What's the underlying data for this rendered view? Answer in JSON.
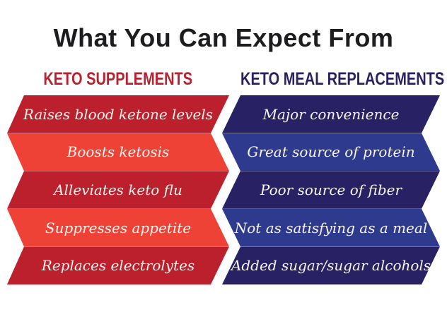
{
  "title": "What You Can Expect From",
  "columns": [
    {
      "header": "KETO SUPPLEMENTS",
      "color": "#BC202D"
    },
    {
      "header": "KETO MEAL REPLACEMENTS",
      "color": "#282264"
    }
  ],
  "rows": [
    {
      "left": "Raises blood ketone levels",
      "right": "Major convenience"
    },
    {
      "left": "Boosts ketosis",
      "right": "Great source of protein"
    },
    {
      "left": "Alleviates keto flu",
      "right": "Poor source of fiber"
    },
    {
      "left": "Suppresses appetite",
      "right": "Not as satisfying as a meal"
    },
    {
      "left": "Replaces electrolytes",
      "right": "Added sugar/sugar alcohols"
    }
  ],
  "colors": {
    "dark_red": "#BC202D",
    "light_red": "#EE4237",
    "dark_navy": "#282264",
    "royal_blue": "#2E3A8D",
    "title_text": "#1D1D1F",
    "band_text": "#F7F3ED",
    "background": "#FFFFFF"
  }
}
